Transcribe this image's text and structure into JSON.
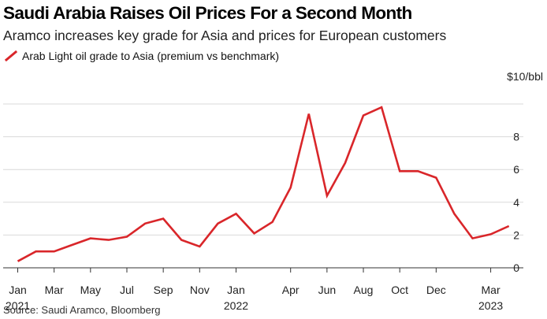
{
  "title": "Saudi Arabia Raises Oil Prices For a Second Month",
  "subtitle": "Aramco increases key grade for Asia and prices for European customers",
  "source": "Source: Saudi Aramco, Bloomberg",
  "colors": {
    "series": "#d9262a",
    "grid": "#d9d9d9",
    "axis": "#333333"
  },
  "chart_data": {
    "type": "line",
    "unit_label": "$10/bbl",
    "ylim": [
      0,
      10
    ],
    "yticks": [
      0,
      2,
      4,
      6,
      8
    ],
    "grid": true,
    "legend_position": "top-left",
    "x_ticks": [
      {
        "month": "2021-01",
        "label": "Jan",
        "year": "2021"
      },
      {
        "month": "2021-03",
        "label": "Mar",
        "year": ""
      },
      {
        "month": "2021-05",
        "label": "May",
        "year": ""
      },
      {
        "month": "2021-07",
        "label": "Jul",
        "year": ""
      },
      {
        "month": "2021-09",
        "label": "Sep",
        "year": ""
      },
      {
        "month": "2021-11",
        "label": "Nov",
        "year": ""
      },
      {
        "month": "2022-01",
        "label": "Jan",
        "year": "2022"
      },
      {
        "month": "2022-04",
        "label": "Apr",
        "year": ""
      },
      {
        "month": "2022-06",
        "label": "Jun",
        "year": ""
      },
      {
        "month": "2022-08",
        "label": "Aug",
        "year": ""
      },
      {
        "month": "2022-10",
        "label": "Oct",
        "year": ""
      },
      {
        "month": "2022-12",
        "label": "Dec",
        "year": ""
      },
      {
        "month": "2023-03",
        "label": "Mar",
        "year": "2023"
      }
    ],
    "series": [
      {
        "name": "Arab Light oil grade to Asia (premium vs benchmark)",
        "x": [
          "2021-01",
          "2021-02",
          "2021-03",
          "2021-04",
          "2021-05",
          "2021-06",
          "2021-07",
          "2021-08",
          "2021-09",
          "2021-10",
          "2021-11",
          "2021-12",
          "2022-01",
          "2022-02",
          "2022-03",
          "2022-04",
          "2022-05",
          "2022-06",
          "2022-07",
          "2022-08",
          "2022-09",
          "2022-10",
          "2022-11",
          "2022-12",
          "2023-01",
          "2023-02",
          "2023-03",
          "2023-04"
        ],
        "values": [
          0.4,
          1.0,
          1.0,
          1.4,
          1.8,
          1.7,
          1.9,
          2.7,
          3.0,
          1.7,
          1.3,
          2.7,
          3.3,
          2.1,
          2.8,
          4.9,
          9.4,
          4.4,
          6.4,
          9.3,
          9.8,
          5.9,
          5.9,
          5.5,
          3.3,
          1.8,
          2.05,
          2.55
        ]
      }
    ]
  }
}
